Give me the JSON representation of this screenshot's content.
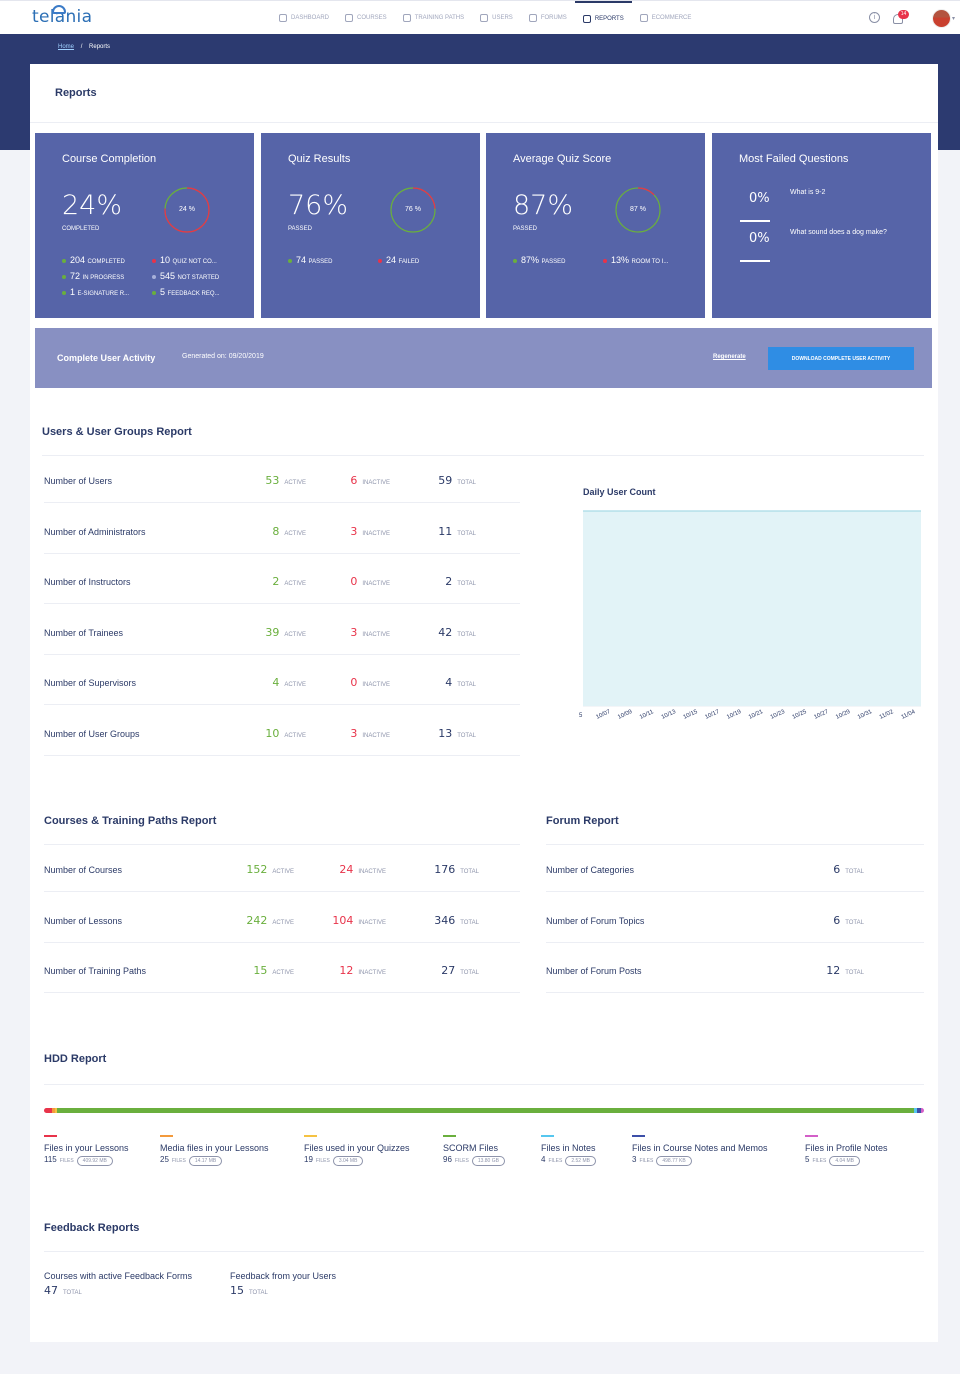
{
  "app": {
    "logo": "telania"
  },
  "nav": [
    {
      "label": "Dashboard",
      "icon": "dashboard-icon"
    },
    {
      "label": "Courses",
      "icon": "courses-icon"
    },
    {
      "label": "Training Paths",
      "icon": "training-paths-icon"
    },
    {
      "label": "Users",
      "icon": "users-icon"
    },
    {
      "label": "Forums",
      "icon": "forums-icon"
    },
    {
      "label": "Reports",
      "icon": "reports-icon",
      "active": true
    },
    {
      "label": "Ecommerce",
      "icon": "ecommerce-icon"
    }
  ],
  "header": {
    "notifications_count": "14"
  },
  "breadcrumb": {
    "home": "Home",
    "sep": "/",
    "current": "Reports"
  },
  "page_title": "Reports",
  "cards": {
    "completion": {
      "title": "Course Completion",
      "big": "24%",
      "big_sub": "completed",
      "ring": "24 %",
      "ring_value": 0.24,
      "stats": [
        {
          "value": "204",
          "label": "completed",
          "color": "#6aaf3d"
        },
        {
          "value": "10",
          "label": "quiz not co...",
          "color": "#e8334a"
        },
        {
          "value": "72",
          "label": "in progress",
          "color": "#6aaf3d"
        },
        {
          "value": "545",
          "label": "not started",
          "color": "#a7b0d9"
        },
        {
          "value": "1",
          "label": "e-signature r...",
          "color": "#6aaf3d"
        },
        {
          "value": "5",
          "label": "feedback req...",
          "color": "#6aaf3d"
        }
      ]
    },
    "quiz": {
      "title": "Quiz Results",
      "big": "76%",
      "big_sub": "passed",
      "ring": "76 %",
      "ring_value": 0.76,
      "stats": [
        {
          "value": "74",
          "label": "passed",
          "color": "#6aaf3d"
        },
        {
          "value": "24",
          "label": "failed",
          "color": "#e8334a"
        }
      ]
    },
    "average": {
      "title": "Average Quiz Score",
      "big": "87%",
      "big_sub": "passed",
      "ring": "87 %",
      "ring_value": 0.87,
      "stats": [
        {
          "value": "87%",
          "label": "passed",
          "color": "#6aaf3d"
        },
        {
          "value": "13%",
          "label": "room to i...",
          "color": "#e8334a"
        }
      ]
    },
    "failed": {
      "title": "Most Failed Questions",
      "items": [
        {
          "value": "0%",
          "question": "What is 9-2"
        },
        {
          "value": "0%",
          "question": "What sound does a dog make?"
        }
      ]
    }
  },
  "activity": {
    "title": "Complete User Activity",
    "generated": "Generated on: 09/20/2019",
    "regenerate": "Regenerate",
    "download": "Download Complete User Activity"
  },
  "users_report": {
    "title": "Users & User Groups Report",
    "rows": [
      {
        "label": "Number of Users",
        "active": "53",
        "inactive": "6",
        "total": "59"
      },
      {
        "label": "Number of Administrators",
        "active": "8",
        "inactive": "3",
        "total": "11"
      },
      {
        "label": "Number of Instructors",
        "active": "2",
        "inactive": "0",
        "total": "2"
      },
      {
        "label": "Number of Trainees",
        "active": "39",
        "inactive": "3",
        "total": "42"
      },
      {
        "label": "Number of Supervisors",
        "active": "4",
        "inactive": "0",
        "total": "4"
      },
      {
        "label": "Number of User Groups",
        "active": "10",
        "inactive": "3",
        "total": "13"
      }
    ]
  },
  "labels": {
    "active": "active",
    "inactive": "inactive",
    "total": "total",
    "files": "files"
  },
  "chart_data": {
    "type": "area",
    "title": "Daily User Count",
    "y_axis_label": "5",
    "x": [
      "10/07",
      "10/09",
      "10/11",
      "10/13",
      "10/15",
      "10/17",
      "10/19",
      "10/21",
      "10/23",
      "10/25",
      "10/27",
      "10/29",
      "10/31",
      "11/02",
      "11/04"
    ],
    "values": [
      5,
      5,
      5,
      5,
      5,
      5,
      5,
      5,
      5,
      5,
      5,
      5,
      5,
      5,
      5
    ],
    "grid": true,
    "fill": "#e2f3f7",
    "stroke": "#a8dbe6"
  },
  "courses_report": {
    "title": "Courses & Training Paths Report",
    "rows": [
      {
        "label": "Number of Courses",
        "active": "152",
        "inactive": "24",
        "total": "176"
      },
      {
        "label": "Number of Lessons",
        "active": "242",
        "inactive": "104",
        "total": "346"
      },
      {
        "label": "Number of Training Paths",
        "active": "15",
        "inactive": "12",
        "total": "27"
      }
    ]
  },
  "forum_report": {
    "title": "Forum Report",
    "rows": [
      {
        "label": "Number of Categories",
        "total": "6"
      },
      {
        "label": "Number of Forum Topics",
        "total": "6"
      },
      {
        "label": "Number of Forum Posts",
        "total": "12"
      }
    ]
  },
  "hdd_report": {
    "title": "HDD Report",
    "items": [
      {
        "name": "Files in your Lessons",
        "count": "115",
        "size": "409.92 MB",
        "color": "#e8334a",
        "share": 0.0095
      },
      {
        "name": "Media files in your Lessons",
        "count": "25",
        "size": "14.17 MB",
        "color": "#f39a3c",
        "share": 0.0033
      },
      {
        "name": "Files used in your Quizzes",
        "count": "19",
        "size": "3.04 MB",
        "color": "#f5c242",
        "share": 0.0015
      },
      {
        "name": "SCORM Files",
        "count": "96",
        "size": "13.80 GB",
        "color": "#6aaf3d",
        "share": 0.975
      },
      {
        "name": "Files in Notes",
        "count": "4",
        "size": "2.52 MB",
        "color": "#56c7ef",
        "share": 0.003
      },
      {
        "name": "Files in Course Notes and Memos",
        "count": "3",
        "size": "498.77 KB",
        "color": "#3d4fa8",
        "share": 0.005
      },
      {
        "name": "Files in Profile Notes",
        "count": "5",
        "size": "4.04 MB",
        "color": "#d35fc8",
        "share": 0.003
      }
    ]
  },
  "feedback_report": {
    "title": "Feedback Reports",
    "items": [
      {
        "name": "Courses with active Feedback Forms",
        "value": "47"
      },
      {
        "name": "Feedback from your Users",
        "value": "15"
      }
    ]
  }
}
